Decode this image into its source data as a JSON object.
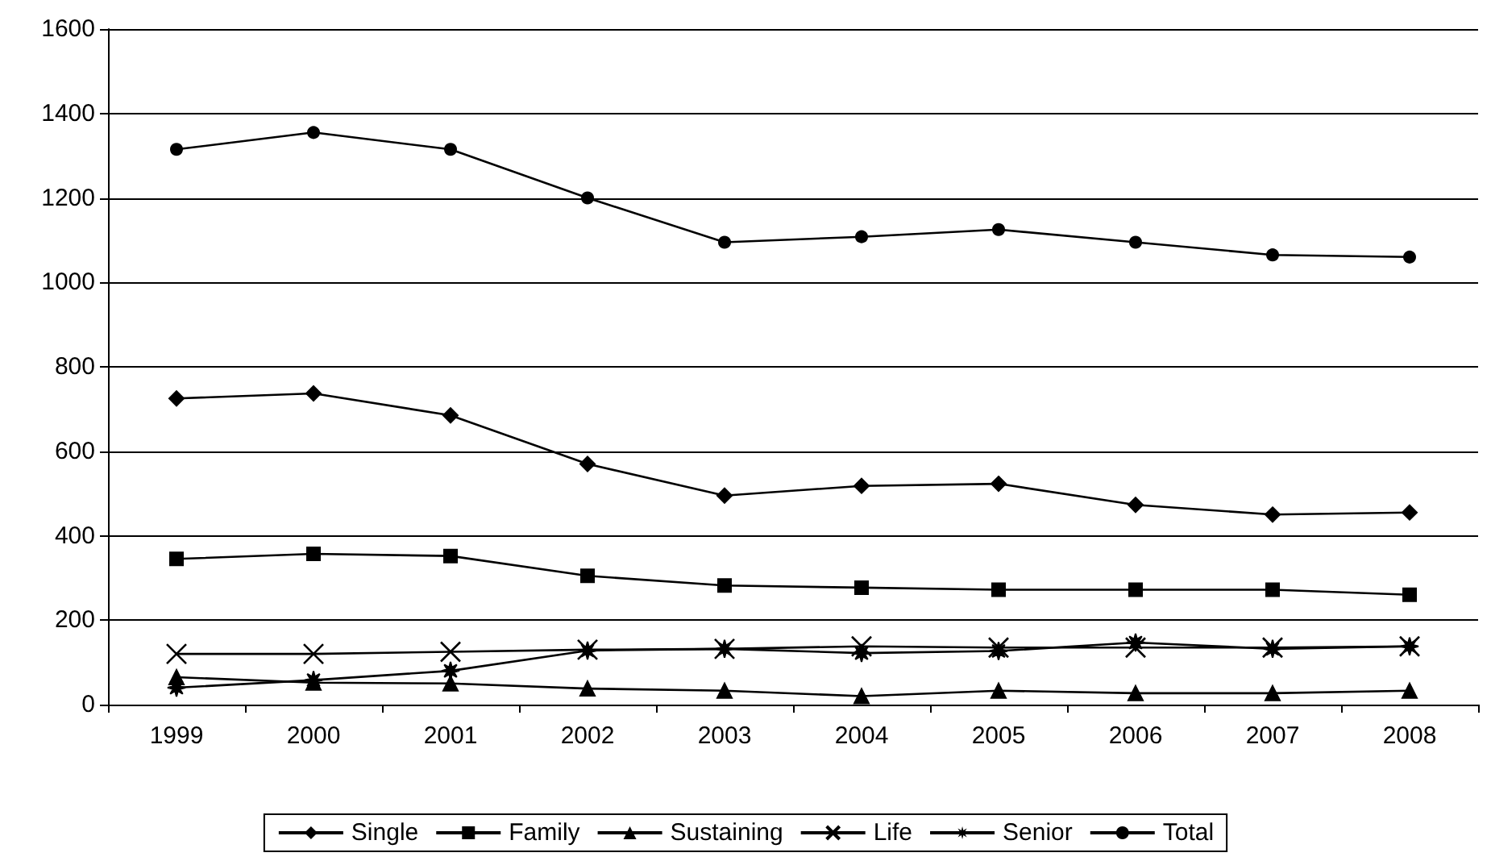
{
  "chart_data": {
    "type": "line",
    "categories": [
      "1999",
      "2000",
      "2001",
      "2002",
      "2003",
      "2004",
      "2005",
      "2006",
      "2007",
      "2008"
    ],
    "series": [
      {
        "name": "Single",
        "color": "#000000",
        "marker": "diamond",
        "values": [
          725,
          737,
          685,
          570,
          495,
          518,
          523,
          473,
          450,
          455
        ]
      },
      {
        "name": "Family",
        "color": "#000000",
        "marker": "square",
        "values": [
          345,
          357,
          352,
          305,
          282,
          277,
          272,
          272,
          272,
          260
        ]
      },
      {
        "name": "Sustaining",
        "color": "#000000",
        "marker": "triangle",
        "values": [
          65,
          52,
          50,
          38,
          33,
          20,
          33,
          27,
          27,
          33
        ]
      },
      {
        "name": "Life",
        "color": "#000000",
        "marker": "cross",
        "values": [
          120,
          120,
          125,
          130,
          132,
          138,
          135,
          135,
          135,
          138
        ]
      },
      {
        "name": "Senior",
        "color": "#000000",
        "marker": "star",
        "values": [
          40,
          58,
          80,
          128,
          132,
          122,
          127,
          147,
          132,
          138
        ]
      },
      {
        "name": "Total",
        "color": "#000000",
        "marker": "circle",
        "values": [
          1315,
          1355,
          1315,
          1200,
          1095,
          1108,
          1125,
          1095,
          1065,
          1060
        ]
      }
    ],
    "ylim": [
      0,
      1600
    ],
    "yticks": [
      0,
      200,
      400,
      600,
      800,
      1000,
      1200,
      1400,
      1600
    ],
    "grid": "y",
    "legend": "bottom",
    "line_style": "solid"
  }
}
